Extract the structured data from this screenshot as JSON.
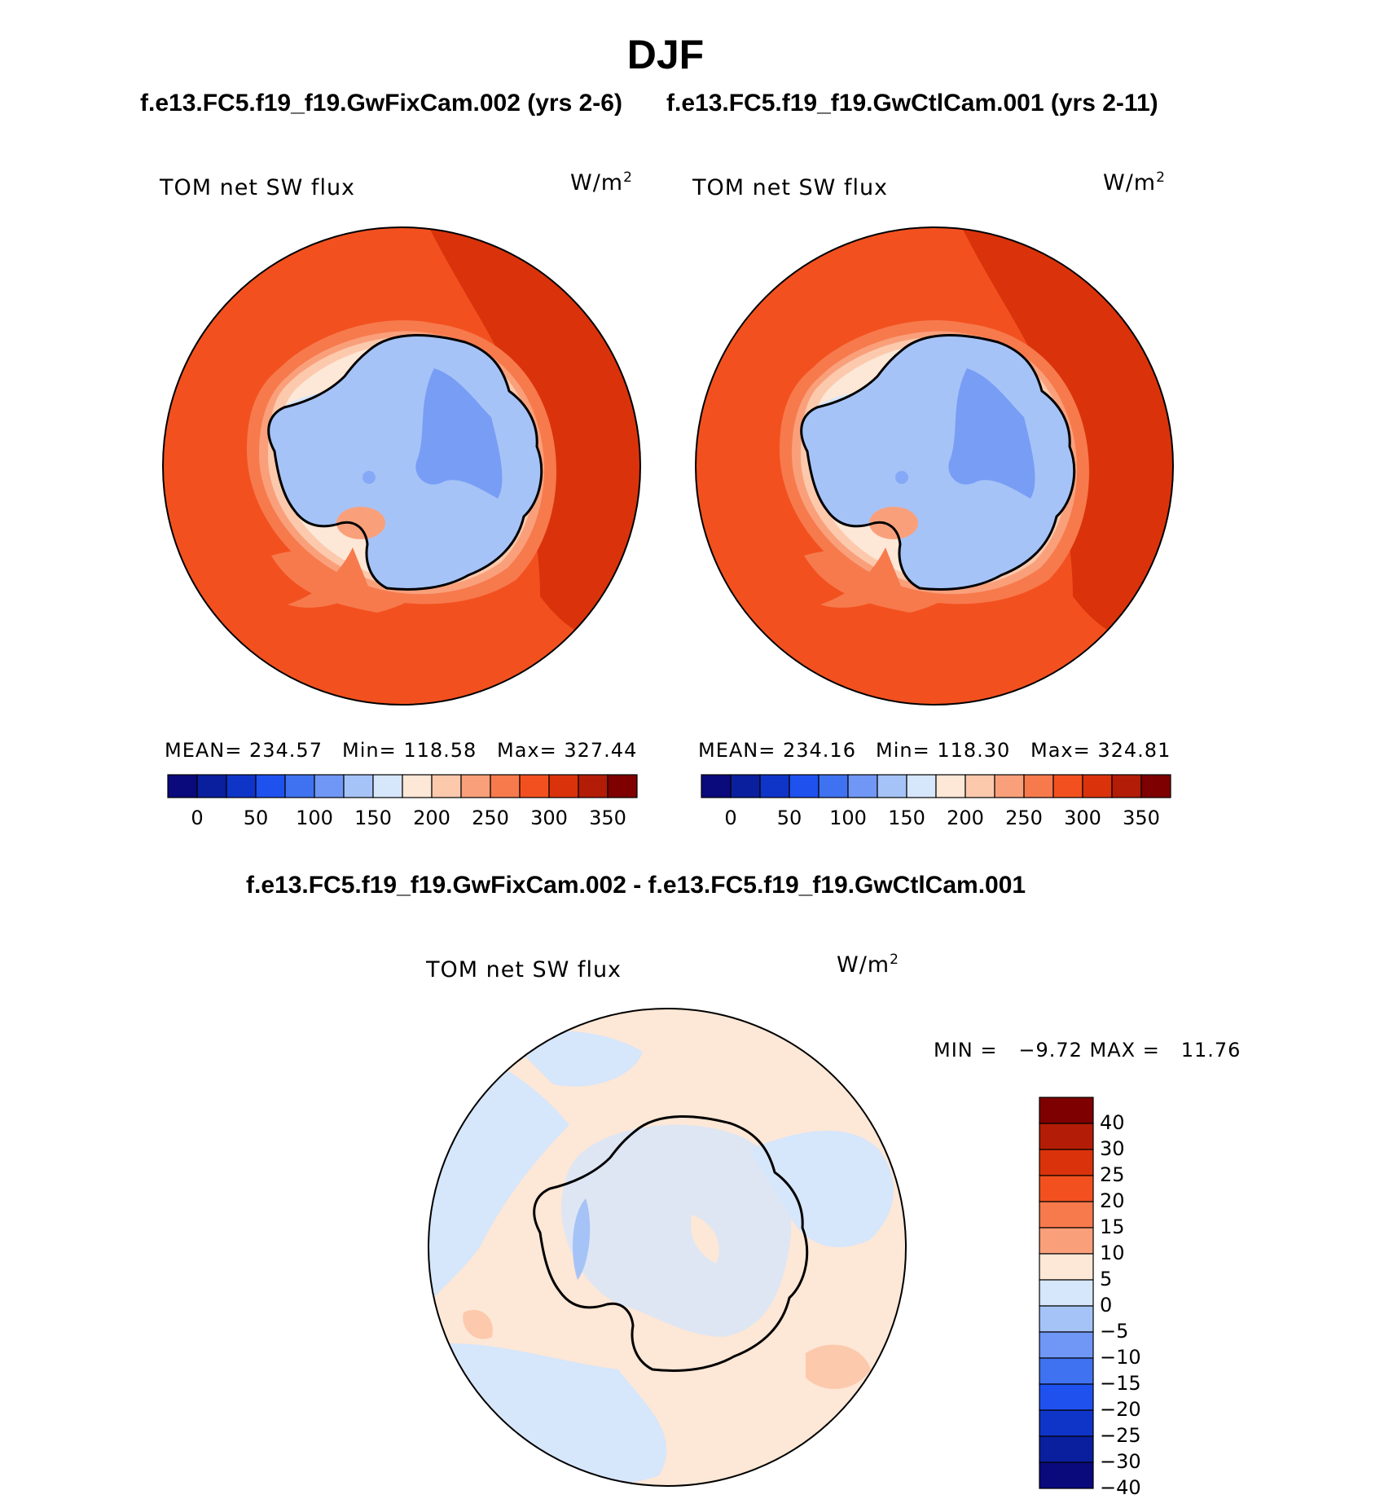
{
  "title": "DJF",
  "top_left_case": "f.e13.FC5.f19_f19.GwFixCam.002 (yrs 2-6)",
  "top_right_case": "f.e13.FC5.f19_f19.GwCtlCam.001 (yrs 2-11)",
  "diff_title": "f.e13.FC5.f19_f19.GwFixCam.002 - f.e13.FC5.f19_f19.GwCtlCam.001",
  "panels": [
    {
      "variable": "TOM net SW flux",
      "units": "W/m",
      "units_sup": "2",
      "mean": "MEAN= 234.57",
      "min": "Min= 118.58",
      "max": "Max= 327.44"
    },
    {
      "variable": "TOM net SW flux",
      "units": "W/m",
      "units_sup": "2",
      "mean": "MEAN= 234.16",
      "min": "Min= 118.30",
      "max": "Max= 324.81"
    },
    {
      "variable": "TOM net SW flux",
      "units": "W/m",
      "units_sup": "2",
      "minmax": "MIN =   −9.72 MAX =   11.76"
    }
  ],
  "horizontal_colorbar": {
    "colors": [
      "#0a0a7c",
      "#0a1f9e",
      "#0f35c8",
      "#1f51ee",
      "#3f72f0",
      "#7097f5",
      "#a6c3f7",
      "#d6e6fb",
      "#fde7d6",
      "#fcc9ad",
      "#f9a07b",
      "#f77a4d",
      "#f2511f",
      "#da330b",
      "#b31c06",
      "#7e0000"
    ],
    "labels": [
      "0",
      "50",
      "100",
      "150",
      "200",
      "250",
      "300",
      "350"
    ]
  },
  "vertical_colorbar": {
    "colors_top_to_bottom": [
      "#7e0000",
      "#b31c06",
      "#da330b",
      "#f2511f",
      "#f77a4d",
      "#f9a07b",
      "#fde7d6",
      "#d6e6fb",
      "#a6c3f7",
      "#7097f5",
      "#3f72f0",
      "#1f51ee",
      "#0f35c8",
      "#0a1f9e",
      "#0a0a7c"
    ],
    "labels": [
      "40",
      "30",
      "25",
      "20",
      "15",
      "10",
      "5",
      "0",
      "−5",
      "−10",
      "−15",
      "−20",
      "−25",
      "−30",
      "−40"
    ]
  },
  "map_colors": {
    "ocean_dark": "#da330b",
    "ocean": "#f2511f",
    "ocean_mid": "#f77a4d",
    "coast_warm": "#f9a07b",
    "coast_light": "#fcc9ad",
    "coast_pale": "#fde7d6",
    "ice_light": "#d6e6fb",
    "ice": "#a6c3f7",
    "ice_dark": "#7097f5",
    "diff_pos": "#fde7d6",
    "diff_neg": "#d6e6fb",
    "diff_neg2": "#a6c3f7",
    "diff_pos2": "#fcc9ad"
  }
}
